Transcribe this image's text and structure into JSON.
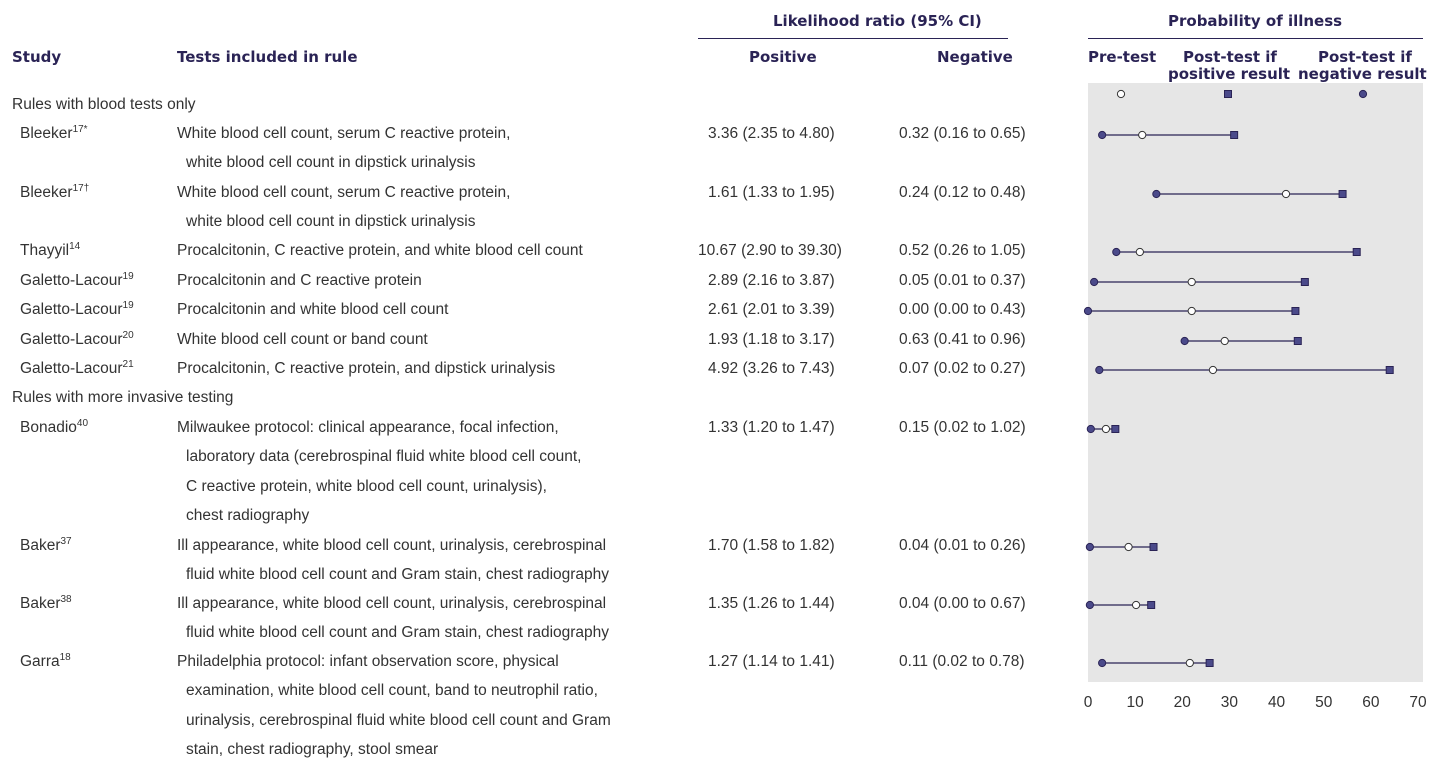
{
  "headers": {
    "study": "Study",
    "tests": "Tests included in rule",
    "lr_group": "Likelihood ratio (95% CI)",
    "lr_positive": "Positive",
    "lr_negative": "Negative",
    "prob_group": "Probability of illness",
    "pretest": "Pre-test",
    "post_pos_l1": "Post-test if",
    "post_pos_l2": "positive result",
    "post_neg_l1": "Post-test if",
    "post_neg_l2": "negative result"
  },
  "groups": [
    {
      "label": "Rules with blood tests only"
    },
    {
      "label": "Rules with more invasive testing"
    }
  ],
  "rows": [
    {
      "study": "Bleeker",
      "ref": "17*",
      "tests": [
        "White blood cell count, serum C reactive protein,",
        "white blood cell count in dipstick urinalysis"
      ],
      "lr_pos": "3.36 (2.35 to 4.80)",
      "lr_neg": "0.32 (0.16 to 0.65)"
    },
    {
      "study": "Bleeker",
      "ref": "17†",
      "tests": [
        "White blood cell count, serum C reactive protein,",
        "white blood cell count in dipstick urinalysis"
      ],
      "lr_pos": "1.61 (1.33 to 1.95)",
      "lr_neg": "0.24 (0.12 to 0.48)"
    },
    {
      "study": "Thayyil",
      "ref": "14",
      "tests": [
        "Procalcitonin, C reactive protein, and white blood cell count"
      ],
      "lr_pos": "10.67 (2.90 to 39.30)",
      "lr_neg": "0.52 (0.26 to 1.05)"
    },
    {
      "study": "Galetto-Lacour",
      "ref": "19",
      "tests": [
        "Procalcitonin and C reactive protein"
      ],
      "lr_pos": "2.89 (2.16 to 3.87)",
      "lr_neg": "0.05 (0.01 to 0.37)"
    },
    {
      "study": "Galetto-Lacour",
      "ref": "19",
      "tests": [
        "Procalcitonin and white blood cell count"
      ],
      "lr_pos": "2.61 (2.01 to 3.39)",
      "lr_neg": "0.00 (0.00 to 0.43)"
    },
    {
      "study": "Galetto-Lacour",
      "ref": "20",
      "tests": [
        "White blood cell count or band count"
      ],
      "lr_pos": "1.93 (1.18 to 3.17)",
      "lr_neg": "0.63 (0.41 to 0.96)"
    },
    {
      "study": "Galetto-Lacour",
      "ref": "21",
      "tests": [
        "Procalcitonin, C reactive protein, and dipstick urinalysis"
      ],
      "lr_pos": "4.92 (3.26 to 7.43)",
      "lr_neg": "0.07 (0.02 to 0.27)"
    },
    {
      "study": "Bonadio",
      "ref": "40",
      "tests": [
        "Milwaukee protocol: clinical appearance, focal infection,",
        "laboratory data (cerebrospinal fluid white blood cell count,",
        "C reactive protein, white blood cell count, urinalysis),",
        "chest radiography"
      ],
      "lr_pos": "1.33 (1.20 to 1.47)",
      "lr_neg": "0.15 (0.02 to 1.02)"
    },
    {
      "study": "Baker",
      "ref": "37",
      "tests": [
        "Ill appearance, white blood cell count, urinalysis, cerebrospinal",
        "fluid white blood cell count and Gram stain, chest radiography"
      ],
      "lr_pos": "1.70 (1.58 to 1.82)",
      "lr_neg": "0.04 (0.01 to 0.26)"
    },
    {
      "study": "Baker",
      "ref": "38",
      "tests": [
        "Ill appearance, white blood cell count, urinalysis, cerebrospinal",
        "fluid white blood cell count and Gram stain, chest radiography"
      ],
      "lr_pos": "1.35 (1.26 to 1.44)",
      "lr_neg": "0.04 (0.00 to 0.67)"
    },
    {
      "study": "Garra",
      "ref": "18",
      "tests": [
        "Philadelphia protocol: infant observation score, physical",
        "examination, white blood cell count, band to neutrophil ratio,",
        "urinalysis, cerebrospinal fluid white blood cell count and Gram",
        "stain, chest radiography, stool smear"
      ],
      "lr_pos": "1.27 (1.14 to 1.41)",
      "lr_neg": "0.11 (0.02 to 0.78)"
    }
  ],
  "chart_data": {
    "type": "dot-range",
    "xlim": [
      0,
      70
    ],
    "xticks": [
      0,
      10,
      20,
      30,
      40,
      50,
      60,
      70
    ],
    "grid": false,
    "legend": "top",
    "series": [
      {
        "name": "Pre-test",
        "marker": "open-circle"
      },
      {
        "name": "Post-test if positive result",
        "marker": "square"
      },
      {
        "name": "Post-test if negative result",
        "marker": "filled-circle"
      }
    ],
    "points": [
      {
        "pre": 11.5,
        "post_pos": 31,
        "post_neg": 3
      },
      {
        "pre": 42,
        "post_pos": 54,
        "post_neg": 14.5
      },
      {
        "pre": 11,
        "post_pos": 57,
        "post_neg": 6
      },
      {
        "pre": 22,
        "post_pos": 46,
        "post_neg": 1.3
      },
      {
        "pre": 22,
        "post_pos": 44,
        "post_neg": 0
      },
      {
        "pre": 29,
        "post_pos": 44.5,
        "post_neg": 20.5
      },
      {
        "pre": 26.5,
        "post_pos": 64,
        "post_neg": 2.4
      },
      {
        "pre": 3.8,
        "post_pos": 5.8,
        "post_neg": 0.6
      },
      {
        "pre": 8.6,
        "post_pos": 13.9,
        "post_neg": 0.4
      },
      {
        "pre": 10.2,
        "post_pos": 13.4,
        "post_neg": 0.4
      },
      {
        "pre": 21.6,
        "post_pos": 25.8,
        "post_neg": 3
      }
    ]
  },
  "colors": {
    "marker_fill": "#4b4a8a",
    "line": "#2a2355",
    "chart_background": "#e6e6e6",
    "header_text": "#2a2355"
  }
}
